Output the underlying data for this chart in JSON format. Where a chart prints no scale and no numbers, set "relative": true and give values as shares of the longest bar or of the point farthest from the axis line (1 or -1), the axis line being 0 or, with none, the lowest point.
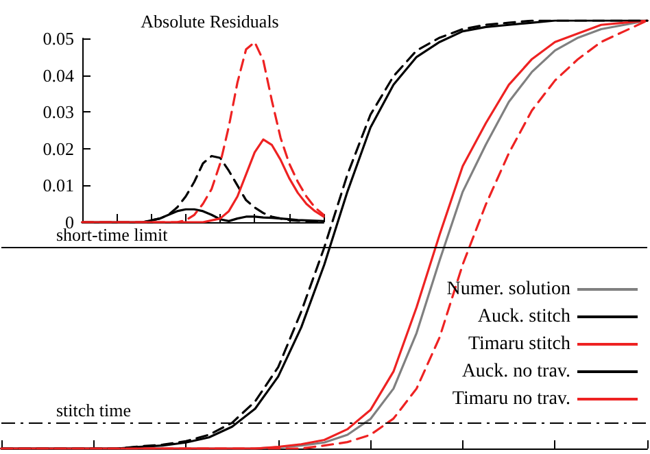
{
  "chart_data": [
    {
      "type": "line",
      "relative": true,
      "tick_labels": false,
      "legend": "bottom right",
      "marker": "none",
      "categories": [
        null,
        null,
        null,
        null,
        null,
        null,
        null,
        null,
        null,
        null,
        null,
        null,
        null,
        null,
        null,
        null,
        null,
        null,
        null,
        null,
        null,
        null,
        null,
        null,
        null,
        null,
        null,
        null,
        null
      ],
      "series": [
        {
          "name": "Numer. solution",
          "color": "#808080",
          "line_style": "solid",
          "values": [
            0,
            0,
            0,
            0,
            0,
            0,
            0,
            0,
            0,
            0,
            0,
            0,
            0.003,
            0.007,
            0.014,
            0.032,
            0.069,
            0.14,
            0.27,
            0.44,
            0.6,
            0.71,
            0.81,
            0.88,
            0.93,
            0.96,
            0.98,
            0.99,
            1
          ]
        },
        {
          "name": "Auck. stitch",
          "color": "#000000",
          "line_style": "solid",
          "values": [
            0,
            0,
            0,
            0,
            0,
            0,
            0.004,
            0.007,
            0.014,
            0.026,
            0.051,
            0.093,
            0.168,
            0.283,
            0.43,
            0.6,
            0.75,
            0.85,
            0.915,
            0.95,
            0.975,
            0.985,
            0.99,
            0.995,
            1,
            1,
            1,
            1,
            1
          ]
        },
        {
          "name": "Timaru stitch",
          "color": "#ee2222",
          "line_style": "solid",
          "values": [
            0,
            0,
            0,
            0,
            0,
            0,
            0,
            0,
            0,
            0,
            0,
            0,
            0.004,
            0.01,
            0.02,
            0.045,
            0.09,
            0.18,
            0.33,
            0.5,
            0.66,
            0.76,
            0.85,
            0.91,
            0.95,
            0.97,
            0.99,
            0.995,
            1
          ]
        },
        {
          "name": "Auck. no trav.",
          "color": "#000000",
          "line_style": "dashed",
          "values": [
            0,
            0,
            0,
            0,
            0,
            0,
            0.005,
            0.009,
            0.017,
            0.032,
            0.06,
            0.11,
            0.19,
            0.32,
            0.47,
            0.64,
            0.78,
            0.87,
            0.93,
            0.96,
            0.98,
            0.99,
            0.995,
            1,
            1,
            1,
            1,
            1,
            1
          ]
        },
        {
          "name": "Timaru no trav.",
          "color": "#ee2222",
          "line_style": "dashed",
          "values": [
            0,
            0,
            0,
            0,
            0,
            0,
            0,
            0,
            0,
            0,
            0,
            0,
            0,
            0,
            0.007,
            0.015,
            0.032,
            0.07,
            0.14,
            0.26,
            0.43,
            0.57,
            0.69,
            0.79,
            0.86,
            0.91,
            0.95,
            0.975,
            1
          ]
        }
      ],
      "ref_lines": [
        {
          "axis": "y",
          "value": 0.465,
          "label": "short-time limit",
          "color": "#000000",
          "line_style": "solid"
        },
        {
          "axis": "y",
          "value": 0.055,
          "label": "stitch time",
          "color": "#000000",
          "line_style": "dashed"
        }
      ]
    },
    {
      "type": "line",
      "title": "Absolute Residuals",
      "tick_labels": "y",
      "marker": "none",
      "categories": [
        null,
        null,
        null,
        null,
        null,
        null,
        null,
        null,
        null,
        null,
        null,
        null,
        null,
        null,
        null,
        null,
        null,
        null,
        null,
        null,
        null,
        null,
        null,
        null,
        null,
        null,
        null,
        null,
        null
      ],
      "ylim": [
        0,
        0.05
      ],
      "yticks": [
        0,
        0.01,
        0.02,
        0.03,
        0.04,
        0.05
      ],
      "series": [
        {
          "color": "#000000",
          "line_style": "solid",
          "values": [
            0,
            0,
            0,
            0,
            0,
            0,
            0,
            0,
            0.0005,
            0.001,
            0.002,
            0.003,
            0.0035,
            0.0035,
            0.003,
            0.002,
            0.0008,
            0.0003,
            0.001,
            0.0015,
            0.0015,
            0.0013,
            0.0012,
            0.001,
            0.0008,
            0.0006,
            0.0005,
            0.0004,
            0.0003
          ]
        },
        {
          "color": "#000000",
          "line_style": "dashed",
          "values": [
            0,
            0,
            0,
            0,
            0,
            0,
            0,
            0,
            0.0005,
            0.001,
            0.002,
            0.004,
            0.007,
            0.011,
            0.016,
            0.018,
            0.0175,
            0.014,
            0.01,
            0.006,
            0.004,
            0.0025,
            0.0015,
            0.001,
            0.0006,
            0.0004,
            0.0003,
            0.0002,
            0.0001
          ]
        },
        {
          "color": "#ee2222",
          "line_style": "solid",
          "values": [
            0,
            0,
            0,
            0,
            0,
            0,
            0,
            0,
            0,
            0,
            0,
            0,
            0,
            0,
            0,
            0.0005,
            0.001,
            0.003,
            0.007,
            0.013,
            0.019,
            0.0225,
            0.021,
            0.017,
            0.012,
            0.008,
            0.005,
            0.003,
            0.0015
          ]
        },
        {
          "color": "#ee2222",
          "line_style": "dashed",
          "values": [
            0,
            0,
            0,
            0,
            0,
            0,
            0,
            0,
            0,
            0,
            0,
            0,
            0.0005,
            0.002,
            0.005,
            0.009,
            0.016,
            0.026,
            0.038,
            0.047,
            0.049,
            0.044,
            0.033,
            0.023,
            0.016,
            0.011,
            0.007,
            0.004,
            0.002
          ]
        }
      ]
    }
  ]
}
